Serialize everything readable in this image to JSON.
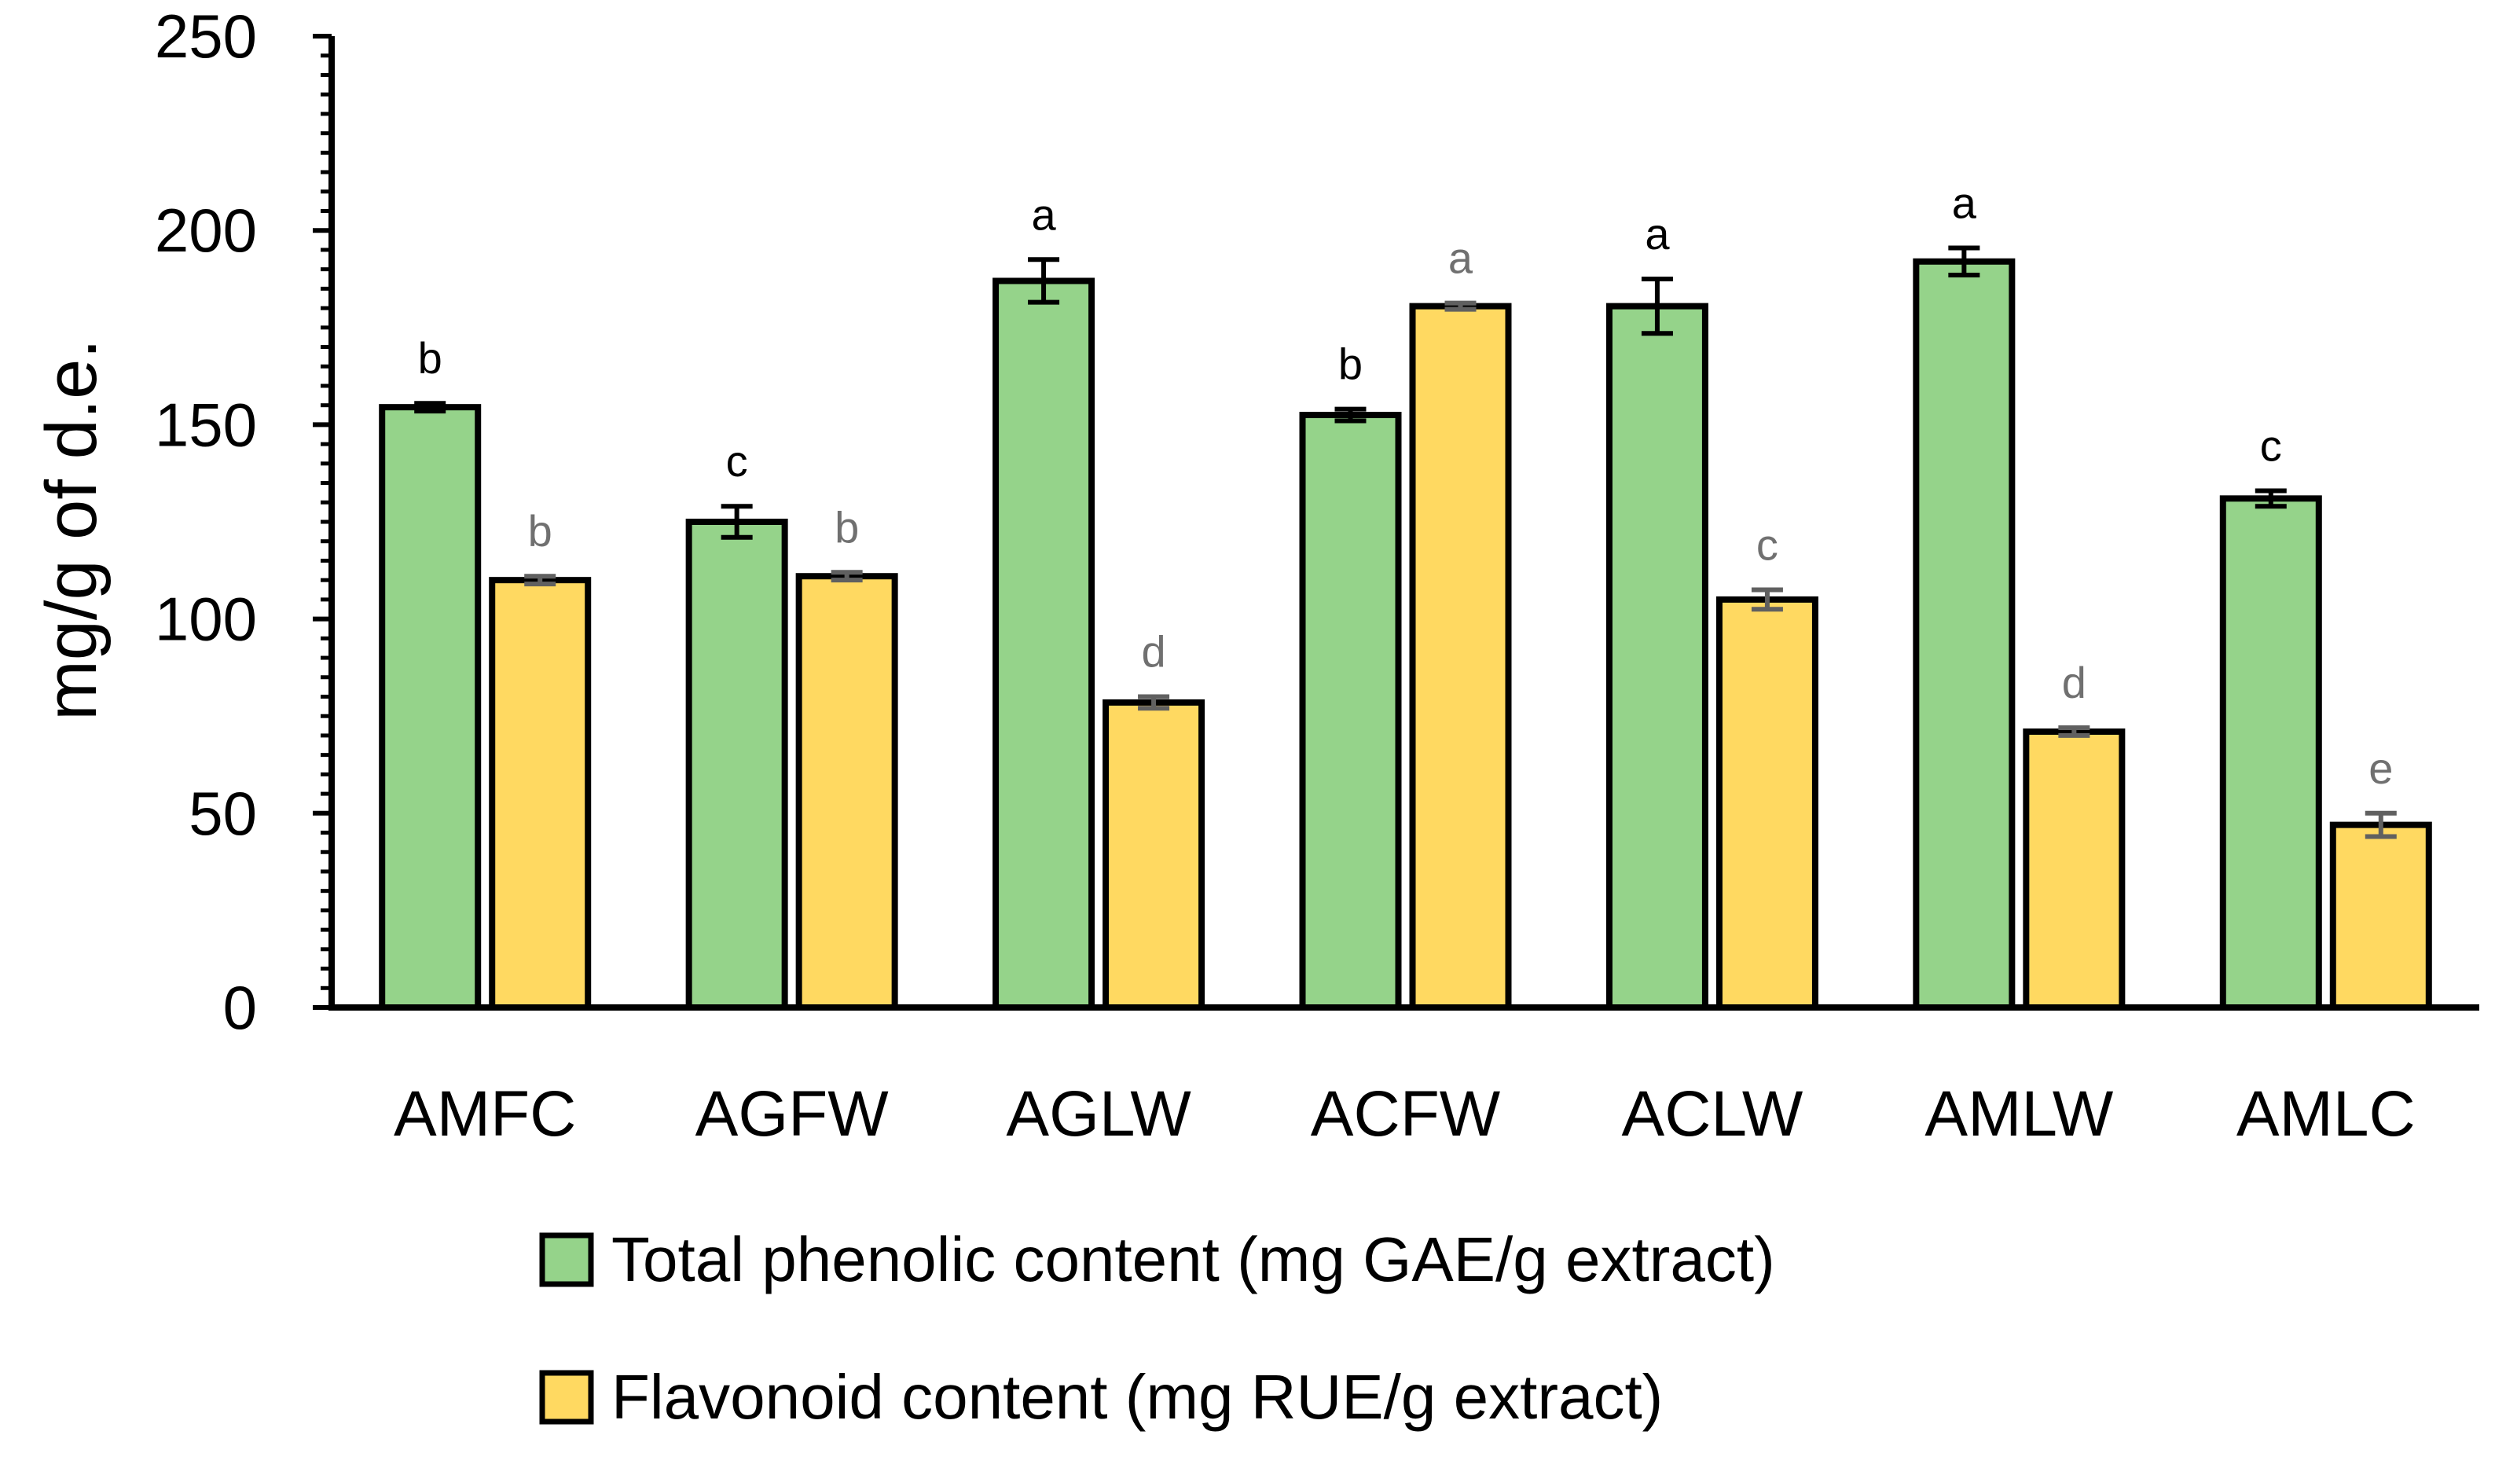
{
  "chart_data": {
    "type": "bar",
    "categories": [
      "AMFC",
      "AGFW",
      "AGLW",
      "ACFW",
      "ACLW",
      "AMLW",
      "AMLC"
    ],
    "series": [
      {
        "name": "Total phenolic content (mg GAE/g extract)",
        "values": [
          154.5,
          125,
          187,
          152.5,
          180.5,
          192,
          131
        ],
        "errors": [
          1,
          4,
          5.5,
          1.5,
          7,
          3.5,
          2
        ],
        "letters": [
          "b",
          "c",
          "a",
          "b",
          "a",
          "a",
          "c"
        ],
        "color": "#95d38a",
        "error_color": "#000000",
        "letter_color": "#000000"
      },
      {
        "name": "Flavonoid content (mg RUE/g extract)",
        "values": [
          110,
          111,
          78.5,
          180.5,
          105,
          71,
          47
        ],
        "errors": [
          1,
          1,
          1.5,
          0.8,
          2.5,
          1,
          3
        ],
        "letters": [
          "b",
          "b",
          "d",
          "a",
          "c",
          "d",
          "e"
        ],
        "color": "#ffd961",
        "error_color": "#606060",
        "letter_color": "#707070"
      }
    ],
    "ylabel": "mg/g of d.e.",
    "xlabel": "",
    "ylim": [
      0,
      250
    ],
    "yticks": [
      "0",
      "50",
      "100",
      "150",
      "200",
      "250"
    ],
    "grid": false,
    "legend_position": "bottom"
  }
}
